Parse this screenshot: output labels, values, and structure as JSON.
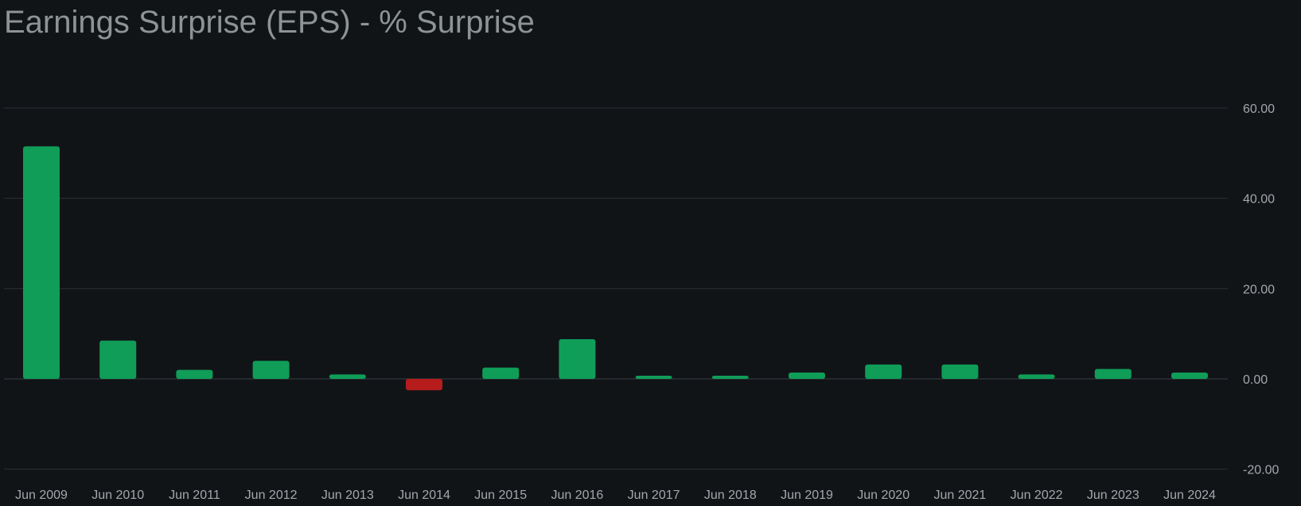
{
  "chart_data": {
    "type": "bar",
    "title": "Earnings Surprise (EPS) - % Surprise",
    "xlabel": "",
    "ylabel": "",
    "categories": [
      "Jun 2009",
      "Jun 2010",
      "Jun 2011",
      "Jun 2012",
      "Jun 2013",
      "Jun 2014",
      "Jun 2015",
      "Jun 2016",
      "Jun 2017",
      "Jun 2018",
      "Jun 2019",
      "Jun 2020",
      "Jun 2021",
      "Jun 2022",
      "Jun 2023",
      "Jun 2024"
    ],
    "values": [
      51.5,
      8.5,
      2.0,
      4.0,
      1.0,
      -2.5,
      2.5,
      8.8,
      0.7,
      0.7,
      1.4,
      3.2,
      3.2,
      1.0,
      2.2,
      1.4
    ],
    "ylim": [
      -20,
      60
    ],
    "yticks": [
      "60.00",
      "40.00",
      "20.00",
      "0.00",
      "-20.00"
    ],
    "ytick_values": [
      60,
      40,
      20,
      0,
      -20
    ],
    "y_axis_position": "right",
    "grid": true,
    "legend": "none",
    "colors": {
      "positive": "#0f9d58",
      "negative": "#b71c1c",
      "grid": "#2b3035",
      "text": "#a3a7ab",
      "title": "#8e9396",
      "background": "#111417"
    }
  }
}
